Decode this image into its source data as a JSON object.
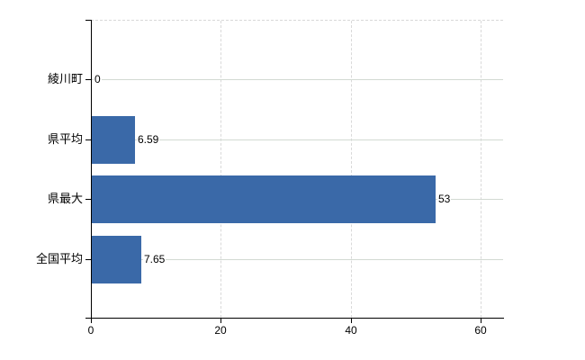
{
  "chart_data": {
    "type": "bar",
    "orientation": "horizontal",
    "title": "",
    "categories": [
      "綾川町",
      "県平均",
      "県最大",
      "全国平均"
    ],
    "values": [
      0,
      6.59,
      53,
      7.65
    ],
    "value_labels": [
      "0",
      "6.59",
      "53",
      "7.65"
    ],
    "series": [
      {
        "name": "",
        "values": [
          0,
          6.59,
          53,
          7.65
        ]
      }
    ],
    "x_ticks": [
      0,
      20,
      40,
      60
    ],
    "xlabel": "",
    "ylabel": "",
    "xlim": [
      0,
      63.4
    ],
    "grid": true,
    "legend_position": "none",
    "colors": {
      "bar": "#3a69a8",
      "axis": "#000000",
      "horizontal_grid": "#d3dad3",
      "vertical_grid": "#d9d9d9",
      "text": "#000000",
      "background": "#ffffff"
    }
  }
}
